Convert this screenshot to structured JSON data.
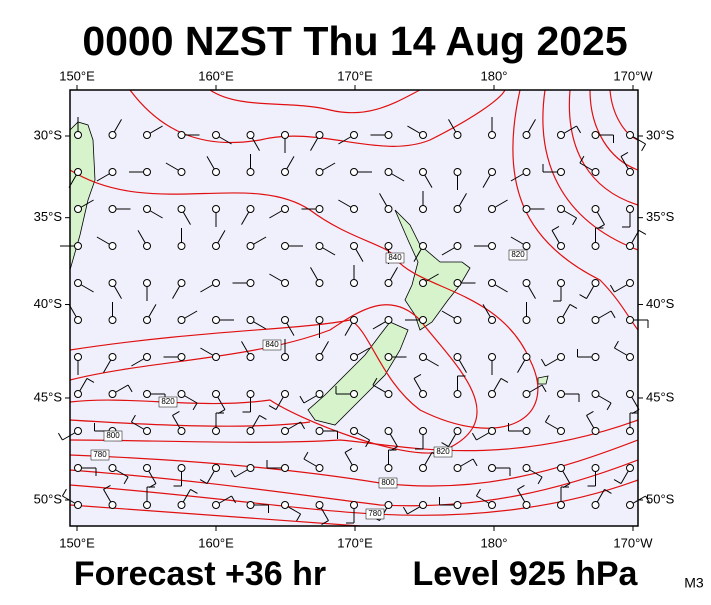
{
  "title": "0000 NZST Thu 14 Aug 2025",
  "map": {
    "lon_ticks": [
      {
        "value": 150,
        "label": "150°E"
      },
      {
        "value": 160,
        "label": "160°E"
      },
      {
        "value": 170,
        "label": "170°E"
      },
      {
        "value": 180,
        "label": "180°"
      },
      {
        "value": 190,
        "label": "170°W"
      }
    ],
    "lat_ticks": [
      {
        "value": -30,
        "label": "30°S"
      },
      {
        "value": -35,
        "label": "35°S"
      },
      {
        "value": -40,
        "label": "40°S"
      },
      {
        "value": -45,
        "label": "45°S"
      },
      {
        "value": -50,
        "label": "50°S"
      }
    ],
    "contour_labels": [
      "840",
      "820",
      "840",
      "820",
      "800",
      "780",
      "820",
      "800",
      "780"
    ]
  },
  "footer": {
    "forecast": "Forecast +36 hr",
    "level": "Level 925 hPa",
    "code": "M3"
  }
}
